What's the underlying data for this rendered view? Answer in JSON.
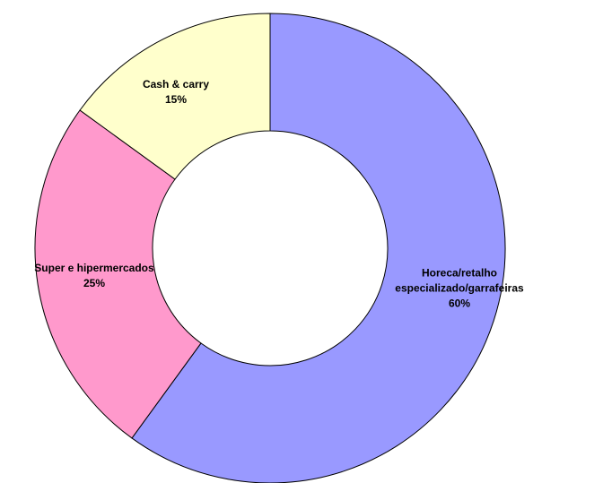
{
  "chart_data": {
    "type": "donut",
    "categories": [
      "Horeca/retalho especializado/garrafeiras",
      "Super e hipermercados",
      "Cash & carry"
    ],
    "values": [
      60,
      25,
      15
    ],
    "value_labels": [
      "60%",
      "25%",
      "15%"
    ],
    "colors": [
      "#9999ff",
      "#ff99cc",
      "#ffffcc"
    ]
  }
}
